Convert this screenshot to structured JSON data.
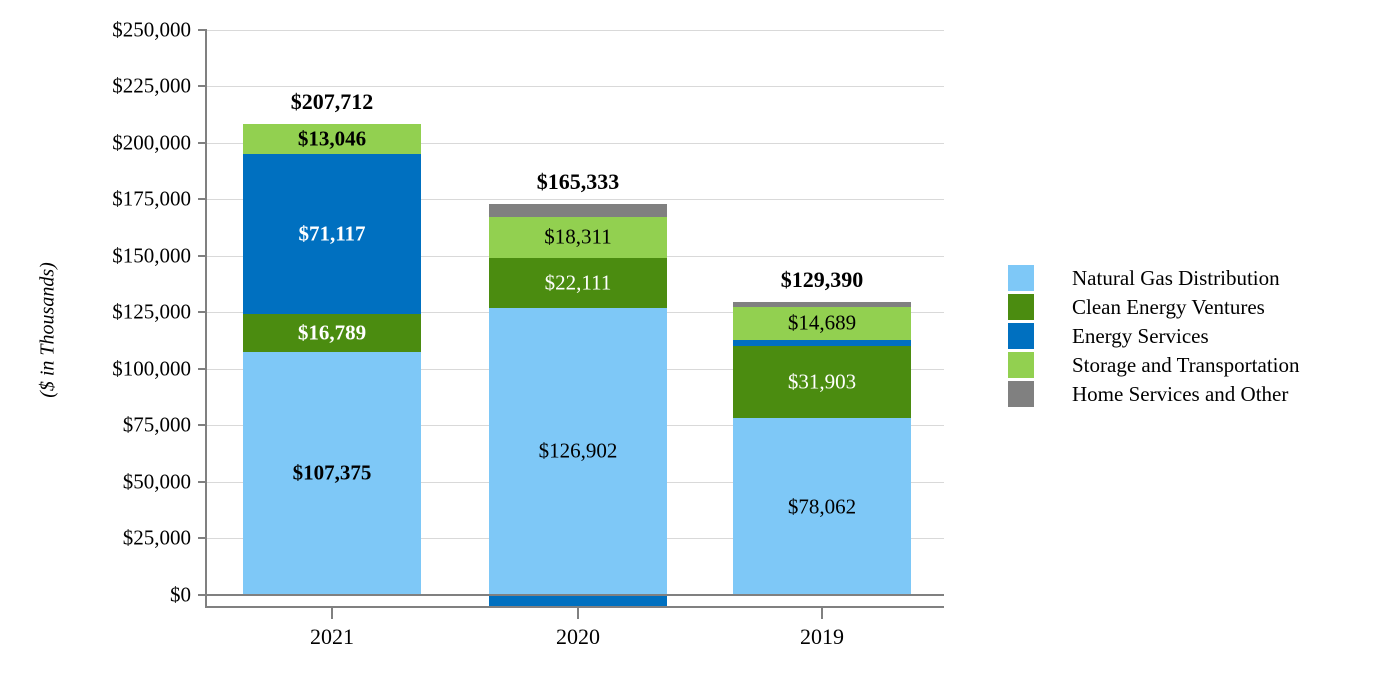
{
  "chart_data": {
    "type": "bar",
    "stacked": true,
    "title": "",
    "xlabel": "",
    "ylabel": "($ in Thousands)",
    "categories": [
      "2021",
      "2020",
      "2019"
    ],
    "series": [
      {
        "name": "Natural Gas Distribution",
        "color": "#7EC8F7",
        "values": [
          107375,
          126902,
          78062
        ],
        "labels": [
          {
            "text": "$107,375",
            "color": "#000000",
            "bold": true
          },
          {
            "text": "$126,902",
            "color": "#000000",
            "bold": false
          },
          {
            "text": "$78,062",
            "color": "#000000",
            "bold": false
          }
        ]
      },
      {
        "name": "Clean Energy Ventures",
        "color": "#4B8C10",
        "values": [
          16789,
          22111,
          31903
        ],
        "labels": [
          {
            "text": "$16,789",
            "color": "#FFFFFF",
            "bold": true
          },
          {
            "text": "$22,111",
            "color": "#FFFFFF",
            "bold": false
          },
          {
            "text": "$31,903",
            "color": "#FFFFFF",
            "bold": false
          }
        ]
      },
      {
        "name": "Energy Services",
        "color": "#0070C0",
        "values": [
          71117,
          -7565,
          2899
        ],
        "labels": [
          {
            "text": "$71,117",
            "color": "#FFFFFF",
            "bold": true
          },
          null,
          null
        ]
      },
      {
        "name": "Storage and Transportation",
        "color": "#92D050",
        "values": [
          13046,
          18311,
          14689
        ],
        "labels": [
          {
            "text": "$13,046",
            "color": "#000000",
            "bold": true
          },
          {
            "text": "$18,311",
            "color": "#000000",
            "bold": false
          },
          {
            "text": "$14,689",
            "color": "#000000",
            "bold": false
          }
        ]
      },
      {
        "name": "Home Services and Other",
        "color": "#808080",
        "values": [
          -615,
          5574,
          1837
        ],
        "labels": [
          null,
          null,
          null
        ]
      }
    ],
    "totals": [
      "$207,712",
      "$165,333",
      "$129,390"
    ],
    "yticks": [
      0,
      25000,
      50000,
      75000,
      100000,
      125000,
      150000,
      175000,
      200000,
      225000,
      250000
    ],
    "ytick_labels": [
      "$0",
      "$25,000",
      "$50,000",
      "$75,000",
      "$100,000",
      "$125,000",
      "$150,000",
      "$175,000",
      "$200,000",
      "$225,000",
      "$250,000"
    ],
    "ylim": [
      -5000,
      250000
    ],
    "grid": true,
    "legend_position": "right",
    "colors": {
      "grid": "#d9d9d9",
      "axis": "#808080",
      "zero_line": "#808080",
      "background": "#ffffff",
      "label_dark": "#000000",
      "label_light": "#FFFFFF"
    }
  }
}
